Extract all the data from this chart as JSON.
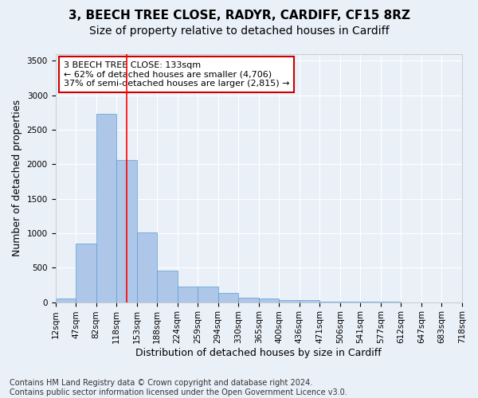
{
  "title1": "3, BEECH TREE CLOSE, RADYR, CARDIFF, CF15 8RZ",
  "title2": "Size of property relative to detached houses in Cardiff",
  "xlabel": "Distribution of detached houses by size in Cardiff",
  "ylabel": "Number of detached properties",
  "bar_values": [
    55,
    850,
    2725,
    2055,
    1005,
    455,
    225,
    225,
    130,
    65,
    55,
    35,
    25,
    10,
    5,
    5,
    5,
    0,
    0,
    0
  ],
  "bin_labels": [
    "12sqm",
    "47sqm",
    "82sqm",
    "118sqm",
    "153sqm",
    "188sqm",
    "224sqm",
    "259sqm",
    "294sqm",
    "330sqm",
    "365sqm",
    "400sqm",
    "436sqm",
    "471sqm",
    "506sqm",
    "541sqm",
    "577sqm",
    "612sqm",
    "647sqm",
    "683sqm"
  ],
  "extra_tick": "718sqm",
  "bar_color": "#aec6e8",
  "bar_edge_color": "#5a9fd4",
  "background_color": "#eaf0f8",
  "grid_color": "#ffffff",
  "red_line_x": 3.0,
  "annotation_text": "3 BEECH TREE CLOSE: 133sqm\n← 62% of detached houses are smaller (4,706)\n37% of semi-detached houses are larger (2,815) →",
  "annotation_box_color": "#ffffff",
  "annotation_box_edge": "#cc0000",
  "ylim": [
    0,
    3600
  ],
  "yticks": [
    0,
    500,
    1000,
    1500,
    2000,
    2500,
    3000,
    3500
  ],
  "footnote": "Contains HM Land Registry data © Crown copyright and database right 2024.\nContains public sector information licensed under the Open Government Licence v3.0.",
  "title1_fontsize": 11,
  "title2_fontsize": 10,
  "axis_label_fontsize": 9,
  "tick_fontsize": 7.5,
  "annotation_fontsize": 8,
  "footnote_fontsize": 7
}
